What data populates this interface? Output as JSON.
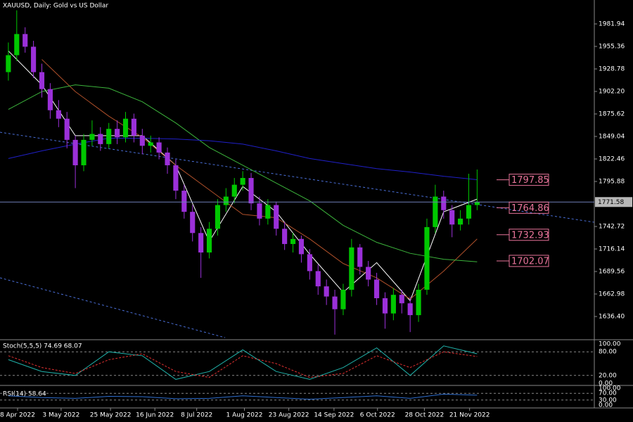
{
  "chart_data": {
    "type": "candlestick",
    "title": "XAUUSD, Daily:  Gold vs US Dollar",
    "up_color": "#00c800",
    "down_color": "#9b30d9",
    "candles": [
      [
        1925,
        1960,
        1915,
        1945
      ],
      [
        1945,
        1998,
        1938,
        1970
      ],
      [
        1970,
        1978,
        1948,
        1955
      ],
      [
        1955,
        1962,
        1918,
        1925
      ],
      [
        1925,
        1935,
        1895,
        1905
      ],
      [
        1905,
        1912,
        1870,
        1880
      ],
      [
        1880,
        1892,
        1860,
        1870
      ],
      [
        1870,
        1878,
        1835,
        1845
      ],
      [
        1845,
        1850,
        1788,
        1815
      ],
      [
        1815,
        1852,
        1808,
        1845
      ],
      [
        1845,
        1868,
        1838,
        1852
      ],
      [
        1852,
        1860,
        1832,
        1840
      ],
      [
        1840,
        1865,
        1835,
        1858
      ],
      [
        1858,
        1868,
        1840,
        1848
      ],
      [
        1848,
        1878,
        1842,
        1870
      ],
      [
        1870,
        1876,
        1842,
        1850
      ],
      [
        1850,
        1858,
        1828,
        1838
      ],
      [
        1838,
        1850,
        1830,
        1842
      ],
      [
        1842,
        1848,
        1822,
        1830
      ],
      [
        1830,
        1836,
        1805,
        1815
      ],
      [
        1815,
        1822,
        1775,
        1785
      ],
      [
        1785,
        1792,
        1752,
        1760
      ],
      [
        1760,
        1768,
        1725,
        1735
      ],
      [
        1735,
        1742,
        1682,
        1712
      ],
      [
        1712,
        1748,
        1705,
        1740
      ],
      [
        1740,
        1775,
        1732,
        1768
      ],
      [
        1768,
        1788,
        1760,
        1778
      ],
      [
        1778,
        1800,
        1770,
        1792
      ],
      [
        1792,
        1808,
        1785,
        1800
      ],
      [
        1800,
        1806,
        1762,
        1770
      ],
      [
        1770,
        1778,
        1744,
        1752
      ],
      [
        1752,
        1775,
        1745,
        1768
      ],
      [
        1768,
        1772,
        1732,
        1740
      ],
      [
        1740,
        1748,
        1715,
        1722
      ],
      [
        1722,
        1735,
        1712,
        1728
      ],
      [
        1728,
        1732,
        1700,
        1710
      ],
      [
        1710,
        1716,
        1680,
        1690
      ],
      [
        1690,
        1698,
        1662,
        1672
      ],
      [
        1672,
        1680,
        1650,
        1660
      ],
      [
        1660,
        1668,
        1615,
        1645
      ],
      [
        1645,
        1675,
        1638,
        1668
      ],
      [
        1668,
        1728,
        1660,
        1718
      ],
      [
        1718,
        1722,
        1686,
        1695
      ],
      [
        1695,
        1702,
        1672,
        1680
      ],
      [
        1680,
        1688,
        1650,
        1658
      ],
      [
        1658,
        1665,
        1622,
        1640
      ],
      [
        1640,
        1670,
        1632,
        1662
      ],
      [
        1662,
        1668,
        1640,
        1652
      ],
      [
        1652,
        1660,
        1618,
        1638
      ],
      [
        1638,
        1675,
        1630,
        1668
      ],
      [
        1668,
        1752,
        1662,
        1742
      ],
      [
        1742,
        1792,
        1735,
        1778
      ],
      [
        1778,
        1785,
        1752,
        1762
      ],
      [
        1762,
        1768,
        1730,
        1745
      ],
      [
        1745,
        1762,
        1738,
        1752
      ],
      [
        1752,
        1805,
        1745,
        1768
      ],
      [
        1768,
        1810,
        1762,
        1771.58
      ]
    ],
    "xlim": [
      -1,
      70
    ],
    "xticks": [
      {
        "value": 1.1,
        "label": "8 Apr 2022"
      },
      {
        "value": 6.3,
        "label": "3 May 2022"
      },
      {
        "value": 12.2,
        "label": "25 May 2022"
      },
      {
        "value": 17.5,
        "label": "16 Jun 2022"
      },
      {
        "value": 22.5,
        "label": "8 Jul 2022"
      },
      {
        "value": 28.2,
        "label": "1 Aug 2022"
      },
      {
        "value": 33.5,
        "label": "23 Aug 2022"
      },
      {
        "value": 38.9,
        "label": "14 Sep 2022"
      },
      {
        "value": 44.1,
        "label": "6 Oct 2022"
      },
      {
        "value": 49.7,
        "label": "28 Oct 2022"
      },
      {
        "value": 55.1,
        "label": "21 Nov 2022"
      }
    ],
    "ylim": [
      1609.82,
      2010.18
    ],
    "yticks": [
      1981.94,
      1955.36,
      1928.78,
      {
        "value": 1902.2,
        "label": "1902.20"
      },
      1875.62,
      1849.04,
      1822.46,
      1795.88,
      1742.72,
      1716.14,
      1689.56,
      1662.98,
      {
        "value": 1636.4,
        "label": "1636.40"
      }
    ],
    "last_price": 1771.58,
    "levels": [
      1797.85,
      1764.86,
      1732.93,
      1702.07
    ],
    "level_color": "#e8749a",
    "overlays": [
      {
        "color": "#ffffff",
        "x": [
          0,
          4,
          8,
          12,
          16,
          20,
          24,
          28,
          32,
          36,
          40,
          44,
          48,
          52,
          56
        ],
        "values": [
          1950,
          1910,
          1850,
          1850,
          1850,
          1815,
          1725,
          1790,
          1760,
          1710,
          1665,
          1700,
          1655,
          1760,
          1775
        ]
      },
      {
        "color": "#b0502a",
        "x": [
          0,
          4,
          8,
          12,
          16,
          20,
          24,
          28,
          32,
          36,
          40,
          44,
          48,
          52,
          56
        ],
        "values": [
          null,
          1940,
          1902,
          1873,
          1848,
          1815,
          1786,
          1757,
          1753,
          1728,
          1699,
          1682,
          1657,
          1690,
          1728
        ]
      },
      {
        "color": "#3cb43c",
        "x": [
          0,
          4,
          8,
          12,
          16,
          20,
          24,
          28,
          32,
          36,
          40,
          44,
          48,
          52,
          56
        ],
        "values": [
          1881,
          1902,
          1910,
          1906,
          1890,
          1865,
          1836,
          1815,
          1794,
          1773,
          1744,
          1724,
          1711,
          1704,
          1701
        ]
      },
      {
        "color": "#2020c8",
        "x": [
          0,
          4,
          8,
          12,
          16,
          20,
          24,
          28,
          32,
          36,
          40,
          44,
          48,
          52,
          56
        ],
        "values": [
          1823,
          1832,
          1840,
          1847,
          1847,
          1846,
          1844,
          1840,
          1832,
          1823,
          1817,
          1811,
          1807,
          1802,
          1798
        ]
      }
    ],
    "indicators": [
      {
        "type": "line",
        "title": "Stoch(5,5,5) 74.69 68.07",
        "ylim": [
          0,
          100
        ],
        "yticks": [
          {
            "value": 100,
            "label": "100.00"
          },
          {
            "value": 80,
            "label": "80.00"
          },
          {
            "value": 20,
            "label": "20.00"
          },
          {
            "value": 0,
            "label": "0.00"
          }
        ],
        "x": [
          0,
          4,
          8,
          12,
          16,
          20,
          24,
          28,
          32,
          36,
          40,
          44,
          48,
          52,
          56
        ],
        "series": [
          {
            "color": "#20b2aa",
            "dashed": false,
            "values": [
              60,
              30,
              20,
              80,
              70,
              10,
              30,
              85,
              30,
              10,
              40,
              90,
              20,
              95,
              75
            ]
          },
          {
            "color": "#e03030",
            "dashed": true,
            "values": [
              70,
              40,
              25,
              60,
              75,
              30,
              15,
              70,
              50,
              15,
              25,
              70,
              40,
              80,
              68
            ]
          }
        ]
      },
      {
        "type": "line",
        "title": "RSI(14) 58.64",
        "ylim": [
          0,
          100
        ],
        "yticks": [
          {
            "value": 100,
            "label": "100.00"
          },
          {
            "value": 70,
            "label": "70.00"
          },
          {
            "value": 30,
            "label": "30.00"
          },
          {
            "value": 0,
            "label": "0.00"
          }
        ],
        "x": [
          0,
          4,
          8,
          12,
          16,
          20,
          24,
          28,
          32,
          36,
          40,
          44,
          48,
          52,
          56
        ],
        "series": [
          {
            "color": "#2f6fd0",
            "dashed": false,
            "values": [
              55,
              45,
              40,
              52,
              50,
              38,
              40,
              55,
              45,
              35,
              45,
              55,
              40,
              65,
              59
            ]
          }
        ]
      }
    ]
  }
}
